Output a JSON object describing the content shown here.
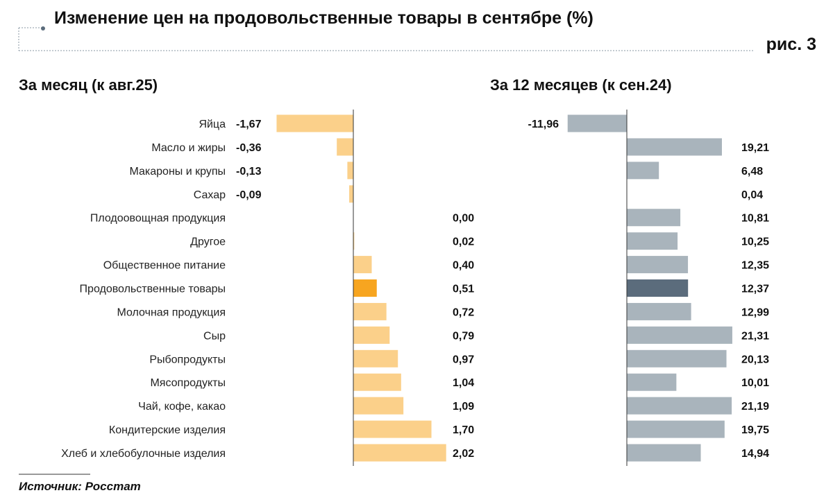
{
  "title": "Изменение цен на продовольственные товары в сентябре (%)",
  "figure_label": "рис. 3",
  "source": "Источник: Росстат",
  "colors": {
    "month": "#fbd08a",
    "month_highlight": "#f7a520",
    "year": "#a9b4bc",
    "year_highlight": "#5b6c7c"
  },
  "chart_data": [
    {
      "type": "bar",
      "orientation": "horizontal",
      "title": "За месяц (к авг.25)",
      "categories": [
        "Яйца",
        "Масло и жиры",
        "Макароны и крупы",
        "Сахар",
        "Плодоовощная продукция",
        "Другое",
        "Общественное питание",
        "Продовольственные товары",
        "Молочная продукция",
        "Сыр",
        "Рыбопродукты",
        "Мясопродукты",
        "Чай, кофе, какао",
        "Кондитерские изделия",
        "Хлеб и хлебобулочные изделия"
      ],
      "values": [
        -1.67,
        -0.36,
        -0.13,
        -0.09,
        0.0,
        0.02,
        0.4,
        0.51,
        0.72,
        0.79,
        0.97,
        1.04,
        1.09,
        1.7,
        2.02
      ],
      "labels": [
        "-1,67",
        "-0,36",
        "-0,13",
        "-0,09",
        "0,00",
        "0,02",
        "0,40",
        "0,51",
        "0,72",
        "0,79",
        "0,97",
        "1,04",
        "1,09",
        "1,70",
        "2,02"
      ],
      "highlight_index": 7
    },
    {
      "type": "bar",
      "orientation": "horizontal",
      "title": "За 12 месяцев (к сен.24)",
      "categories": [
        "Яйца",
        "Масло и жиры",
        "Макароны и крупы",
        "Сахар",
        "Плодоовощная продукция",
        "Другое",
        "Общественное питание",
        "Продовольственные товары",
        "Молочная продукция",
        "Сыр",
        "Рыбопродукты",
        "Мясопродукты",
        "Чай, кофе, какао",
        "Кондитерские изделия",
        "Хлеб и хлебобулочные изделия"
      ],
      "values": [
        -11.96,
        19.21,
        6.48,
        0.04,
        10.81,
        10.25,
        12.35,
        12.37,
        12.99,
        21.31,
        20.13,
        10.01,
        21.19,
        19.75,
        14.94
      ],
      "labels": [
        "-11,96",
        "19,21",
        "6,48",
        "0,04",
        "10,81",
        "10,25",
        "12,35",
        "12,37",
        "12,99",
        "21,31",
        "20,13",
        "10,01",
        "21,19",
        "19,75",
        "14,94"
      ],
      "highlight_index": 7
    }
  ]
}
